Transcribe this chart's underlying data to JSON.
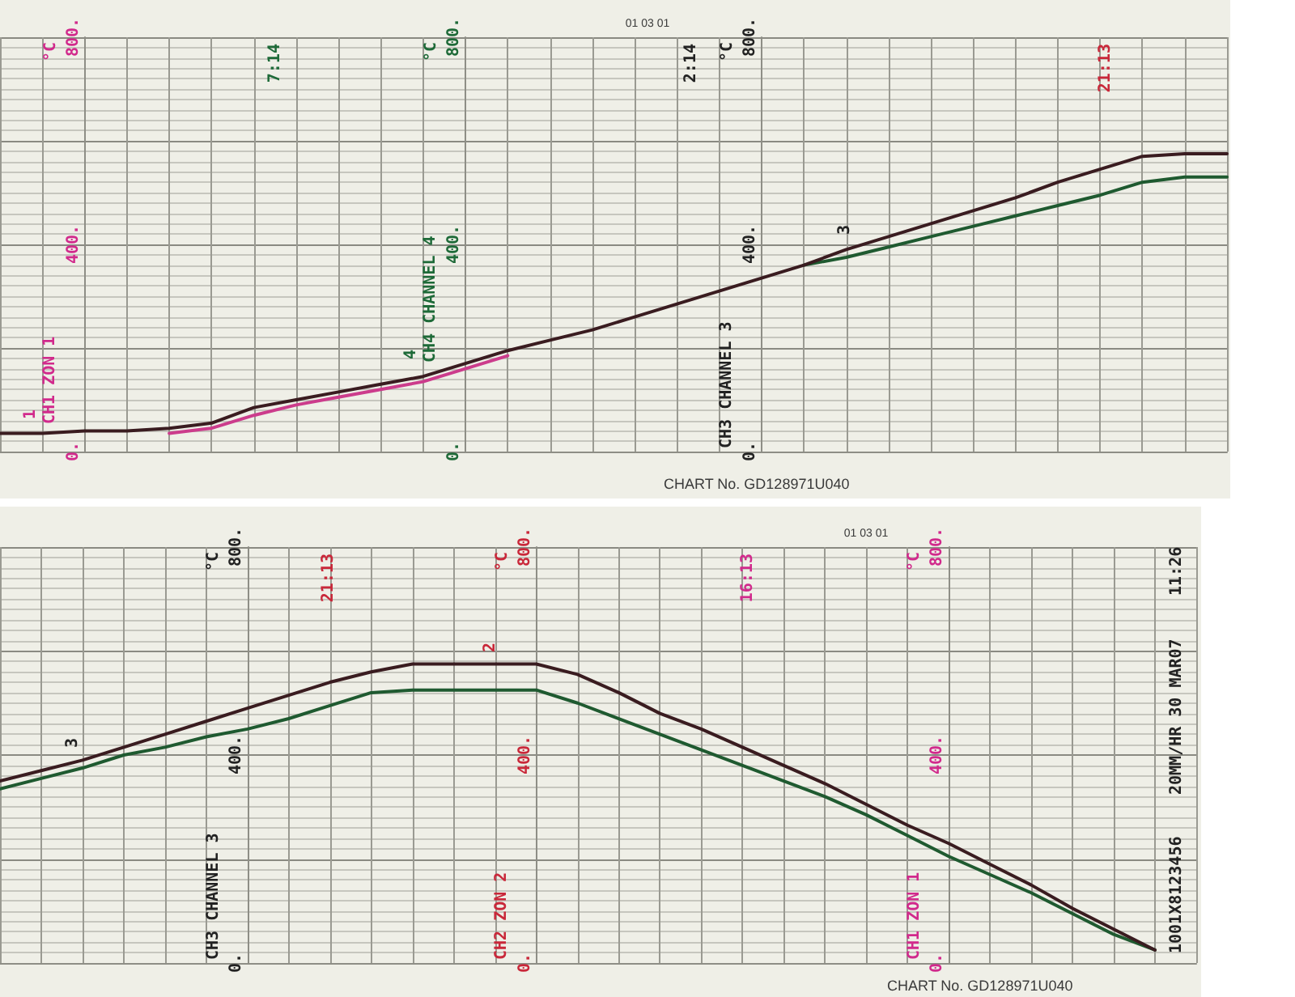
{
  "chart_data": [
    {
      "type": "line",
      "categories": [
        null,
        null,
        null,
        null,
        null,
        null,
        null,
        null,
        null,
        null,
        null,
        null,
        null,
        null,
        null,
        null,
        null,
        null,
        null,
        null,
        null,
        null,
        null,
        null,
        null,
        null,
        null,
        null,
        null,
        null
      ],
      "series": [
        {
          "color": "#cc3c8c",
          "values": [
            null,
            null,
            null,
            null,
            35,
            45,
            70,
            90,
            105,
            120,
            135,
            160,
            185,
            null,
            null,
            null,
            null,
            null,
            null,
            null,
            null,
            null,
            null,
            null,
            null,
            null,
            null,
            null,
            null,
            null
          ]
        },
        {
          "color": "#1f5a30",
          "values": [
            null,
            null,
            null,
            null,
            null,
            null,
            null,
            null,
            null,
            null,
            null,
            null,
            null,
            null,
            null,
            null,
            null,
            null,
            null,
            360,
            375,
            395,
            415,
            435,
            455,
            475,
            495,
            520,
            530,
            530
          ]
        },
        {
          "color": "#3a1c20",
          "values": [
            35,
            35,
            40,
            40,
            45,
            55,
            85,
            100,
            115,
            130,
            145,
            170,
            195,
            215,
            235,
            260,
            285,
            310,
            335,
            360,
            390,
            415,
            440,
            465,
            490,
            520,
            545,
            570,
            575,
            575
          ]
        }
      ],
      "ylim": [
        0,
        800
      ],
      "yticks": [
        {
          "value": 0,
          "label": "0."
        },
        {
          "value": 20,
          "label": null
        },
        {
          "value": 40,
          "label": null
        },
        {
          "value": 60,
          "label": null
        },
        {
          "value": 80,
          "label": null
        },
        {
          "value": 100,
          "label": null
        },
        {
          "value": 120,
          "label": null
        },
        {
          "value": 140,
          "label": null
        },
        {
          "value": 160,
          "label": null
        },
        {
          "value": 180,
          "label": null
        },
        {
          "value": 200,
          "label": null
        },
        {
          "value": 220,
          "label": null
        },
        {
          "value": 240,
          "label": null
        },
        {
          "value": 260,
          "label": null
        },
        {
          "value": 280,
          "label": null
        },
        {
          "value": 300,
          "label": null
        },
        {
          "value": 320,
          "label": null
        },
        {
          "value": 340,
          "label": null
        },
        {
          "value": 360,
          "label": null
        },
        {
          "value": 380,
          "label": null
        },
        {
          "value": 400,
          "label": "400."
        },
        {
          "value": 420,
          "label": null
        },
        {
          "value": 440,
          "label": null
        },
        {
          "value": 460,
          "label": null
        },
        {
          "value": 480,
          "label": null
        },
        {
          "value": 500,
          "label": null
        },
        {
          "value": 520,
          "label": null
        },
        {
          "value": 540,
          "label": null
        },
        {
          "value": 560,
          "label": null
        },
        {
          "value": 580,
          "label": null
        },
        {
          "value": 600,
          "label": null
        },
        {
          "value": 620,
          "label": null
        },
        {
          "value": 640,
          "label": null
        },
        {
          "value": 660,
          "label": null
        },
        {
          "value": 680,
          "label": null
        },
        {
          "value": 700,
          "label": null
        },
        {
          "value": 720,
          "label": null
        },
        {
          "value": 740,
          "label": null
        },
        {
          "value": 760,
          "label": null
        },
        {
          "value": 780,
          "label": null
        },
        {
          "value": 800,
          "label": "800."
        }
      ],
      "ylabel": "°C",
      "y2lim": [
        0,
        800
      ],
      "y2ticks": [
        {
          "value": 0,
          "label": "0."
        },
        {
          "value": 400,
          "label": "400."
        },
        {
          "value": 800,
          "label": "800."
        }
      ],
      "y2label": "°C",
      "y3lim": [
        0,
        800
      ],
      "y3ticks": [
        {
          "value": 0,
          "label": "0."
        },
        {
          "value": 400,
          "label": "400."
        },
        {
          "value": 800,
          "label": "800."
        }
      ],
      "y3label": "°C",
      "grid": true,
      "tick_labels": "y",
      "annotations": [
        "CH1 ZON 1",
        "CH4 CHANNEL 4",
        "CH3 CHANNEL 3",
        "1",
        "4",
        "3",
        "7:14",
        "2:14",
        "21:13",
        "01 03 01",
        "CHART No. GD128971U040"
      ]
    },
    {
      "type": "line",
      "categories": [
        null,
        null,
        null,
        null,
        null,
        null,
        null,
        null,
        null,
        null,
        null,
        null,
        null,
        null,
        null,
        null,
        null,
        null,
        null,
        null,
        null,
        null,
        null,
        null,
        null,
        null,
        null,
        null,
        null,
        null
      ],
      "series": [
        {
          "color": "#1f5a30",
          "values": [
            335,
            355,
            375,
            400,
            415,
            435,
            450,
            470,
            495,
            520,
            525,
            525,
            525,
            525,
            500,
            470,
            440,
            410,
            380,
            350,
            320,
            285,
            245,
            205,
            170,
            135,
            95,
            55,
            25,
            null
          ]
        },
        {
          "color": "#3a1c20",
          "values": [
            350,
            370,
            390,
            415,
            440,
            465,
            490,
            515,
            540,
            560,
            575,
            575,
            575,
            575,
            555,
            520,
            480,
            450,
            415,
            380,
            345,
            305,
            265,
            230,
            190,
            150,
            105,
            65,
            25,
            null
          ]
        }
      ],
      "ylim": [
        0,
        800
      ],
      "yticks": [
        {
          "value": 0,
          "label": "0."
        },
        {
          "value": 20,
          "label": null
        },
        {
          "value": 40,
          "label": null
        },
        {
          "value": 60,
          "label": null
        },
        {
          "value": 80,
          "label": null
        },
        {
          "value": 100,
          "label": null
        },
        {
          "value": 120,
          "label": null
        },
        {
          "value": 140,
          "label": null
        },
        {
          "value": 160,
          "label": null
        },
        {
          "value": 180,
          "label": null
        },
        {
          "value": 200,
          "label": null
        },
        {
          "value": 220,
          "label": null
        },
        {
          "value": 240,
          "label": null
        },
        {
          "value": 260,
          "label": null
        },
        {
          "value": 280,
          "label": null
        },
        {
          "value": 300,
          "label": null
        },
        {
          "value": 320,
          "label": null
        },
        {
          "value": 340,
          "label": null
        },
        {
          "value": 360,
          "label": null
        },
        {
          "value": 380,
          "label": null
        },
        {
          "value": 400,
          "label": "400."
        },
        {
          "value": 420,
          "label": null
        },
        {
          "value": 440,
          "label": null
        },
        {
          "value": 460,
          "label": null
        },
        {
          "value": 480,
          "label": null
        },
        {
          "value": 500,
          "label": null
        },
        {
          "value": 520,
          "label": null
        },
        {
          "value": 540,
          "label": null
        },
        {
          "value": 560,
          "label": null
        },
        {
          "value": 580,
          "label": null
        },
        {
          "value": 600,
          "label": null
        },
        {
          "value": 620,
          "label": null
        },
        {
          "value": 640,
          "label": null
        },
        {
          "value": 660,
          "label": null
        },
        {
          "value": 680,
          "label": null
        },
        {
          "value": 700,
          "label": null
        },
        {
          "value": 720,
          "label": null
        },
        {
          "value": 740,
          "label": null
        },
        {
          "value": 760,
          "label": null
        },
        {
          "value": 780,
          "label": null
        },
        {
          "value": 800,
          "label": "800."
        }
      ],
      "ylabel": "°C",
      "y2lim": [
        0,
        800
      ],
      "y2ticks": [
        {
          "value": 0,
          "label": "0."
        },
        {
          "value": 400,
          "label": "400."
        },
        {
          "value": 800,
          "label": "800."
        }
      ],
      "y2label": "°C",
      "y3lim": [
        0,
        800
      ],
      "y3ticks": [
        {
          "value": 0,
          "label": "0."
        },
        {
          "value": 400,
          "label": "400."
        },
        {
          "value": 800,
          "label": "800."
        }
      ],
      "y3label": "°C",
      "grid": true,
      "tick_labels": "y",
      "annotations": [
        "CH3 CHANNEL 3",
        "CH2 ZON 2",
        "CH1 ZON 1",
        "3",
        "2",
        "21:13",
        "16:13",
        "01 03 01",
        "1001X8123456",
        "20MM/HR 30 MAR07",
        "11:26",
        "CHART No. GD128971U040"
      ]
    }
  ]
}
